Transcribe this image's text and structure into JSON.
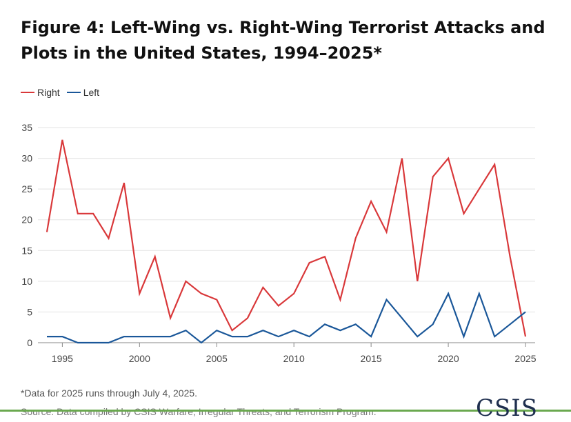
{
  "chart_data": {
    "type": "line",
    "title": "Figure 4: Left-Wing vs. Right-Wing Terrorist Attacks and Plots in the United States, 1994–2025*",
    "xlabel": "",
    "ylabel": "",
    "x": [
      1994,
      1995,
      1996,
      1997,
      1998,
      1999,
      2000,
      2001,
      2002,
      2003,
      2004,
      2005,
      2006,
      2007,
      2008,
      2009,
      2010,
      2011,
      2012,
      2013,
      2014,
      2015,
      2016,
      2017,
      2018,
      2019,
      2020,
      2021,
      2022,
      2023,
      2024,
      2025
    ],
    "xticks": [
      "1995",
      "2000",
      "2005",
      "2010",
      "2015",
      "2020",
      "2025"
    ],
    "xtick_values": [
      1995,
      2000,
      2005,
      2010,
      2015,
      2020,
      2025
    ],
    "xlim": [
      1994,
      2025
    ],
    "ylim": [
      0,
      35
    ],
    "yticks": [
      "0",
      "5",
      "10",
      "15",
      "20",
      "25",
      "30",
      "35"
    ],
    "ytick_values": [
      0,
      5,
      10,
      15,
      20,
      25,
      30,
      35
    ],
    "grid": true,
    "legend_position": "top-left",
    "series": [
      {
        "name": "Right",
        "color": "#d9383a",
        "values": [
          18,
          33,
          21,
          21,
          17,
          26,
          8,
          14,
          4,
          10,
          8,
          7,
          2,
          4,
          9,
          6,
          8,
          13,
          14,
          7,
          17,
          23,
          18,
          30,
          10,
          27,
          30,
          21,
          25,
          29,
          14,
          1
        ]
      },
      {
        "name": "Left",
        "color": "#1a5799",
        "values": [
          1,
          1,
          0,
          0,
          0,
          1,
          1,
          1,
          1,
          2,
          0,
          2,
          1,
          1,
          2,
          1,
          2,
          1,
          3,
          2,
          3,
          1,
          7,
          4,
          1,
          3,
          8,
          1,
          8,
          1,
          3,
          5
        ]
      }
    ]
  },
  "footer": {
    "note": "*Data for 2025 runs through July 4, 2025.",
    "source": "Source: Data compiled by CSIS Warfare, Irregular Threats, and Terrorism Program.",
    "logo": "CSIS"
  }
}
